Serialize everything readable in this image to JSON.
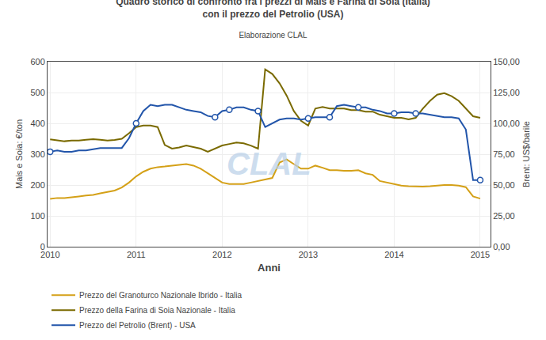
{
  "chart_data": {
    "type": "line",
    "title": "Quadro storico di confronto fra i prezzi di Mais e Farina di Soia (Italia)\ncon il prezzo del Petrolio (USA)",
    "subtitle": "Elaborazione CLAL",
    "xlabel": "Anni",
    "ylabel": "Mais e Soia: €/ton",
    "y2label": "Brent: US$/barile",
    "annotations": [
      {
        "text": "CLAL"
      }
    ],
    "xlim": [
      2009.97,
      2015.12
    ],
    "xticks": [
      2010,
      2011,
      2012,
      2013,
      2014,
      2015
    ],
    "ylim": [
      0,
      600
    ],
    "yticks": [
      0,
      100,
      200,
      300,
      400,
      500,
      600
    ],
    "y2lim": [
      0,
      150
    ],
    "y2ticks": [
      {
        "value": 0,
        "label": "0,00"
      },
      {
        "value": 25,
        "label": "25,00"
      },
      {
        "value": 50,
        "label": "50,00"
      },
      {
        "value": 75,
        "label": "75,00"
      },
      {
        "value": 100,
        "label": "100,00"
      },
      {
        "value": 125,
        "label": "125,00"
      },
      {
        "value": 150,
        "label": "150,00"
      }
    ],
    "grid": true,
    "legend": "bottom",
    "x": [
      2010.0,
      2010.083,
      2010.167,
      2010.25,
      2010.333,
      2010.417,
      2010.5,
      2010.583,
      2010.667,
      2010.75,
      2010.833,
      2010.917,
      2011.0,
      2011.083,
      2011.167,
      2011.25,
      2011.333,
      2011.417,
      2011.5,
      2011.583,
      2011.667,
      2011.75,
      2011.833,
      2011.917,
      2012.0,
      2012.083,
      2012.167,
      2012.25,
      2012.333,
      2012.417,
      2012.5,
      2012.583,
      2012.667,
      2012.75,
      2012.833,
      2012.917,
      2013.0,
      2013.083,
      2013.167,
      2013.25,
      2013.333,
      2013.417,
      2013.5,
      2013.583,
      2013.667,
      2013.75,
      2013.833,
      2013.917,
      2014.0,
      2014.083,
      2014.167,
      2014.25,
      2014.333,
      2014.417,
      2014.5,
      2014.583,
      2014.667,
      2014.75,
      2014.833,
      2014.917,
      2015.0
    ],
    "series": [
      {
        "name": "Prezzo del Granoturco Nazionale Ibrido - Italia",
        "color": "#d4a017",
        "values": [
          155,
          158,
          158,
          160,
          163,
          166,
          168,
          173,
          178,
          182,
          192,
          208,
          228,
          243,
          253,
          258,
          260,
          263,
          266,
          268,
          263,
          253,
          238,
          223,
          208,
          203,
          203,
          203,
          208,
          213,
          218,
          223,
          273,
          283,
          268,
          253,
          253,
          263,
          256,
          248,
          248,
          246,
          246,
          248,
          238,
          233,
          213,
          208,
          203,
          198,
          196,
          195,
          195,
          196,
          198,
          200,
          200,
          198,
          193,
          163,
          156
        ]
      },
      {
        "name": "Prezzo della Farina di Soia Nazionale - Italia",
        "color": "#7a6a00",
        "values": [
          348,
          345,
          342,
          344,
          344,
          347,
          349,
          347,
          344,
          346,
          350,
          368,
          388,
          393,
          393,
          388,
          330,
          318,
          322,
          328,
          322,
          318,
          308,
          318,
          328,
          333,
          338,
          335,
          328,
          318,
          575,
          560,
          530,
          490,
          440,
          408,
          393,
          448,
          453,
          448,
          448,
          448,
          443,
          443,
          438,
          438,
          428,
          423,
          418,
          418,
          413,
          418,
          448,
          473,
          493,
          498,
          488,
          473,
          448,
          423,
          418
        ]
      },
      {
        "name": "Prezzo del Petrolio (Brent) - USA",
        "color": "#2255aa",
        "axis": "y2",
        "values": [
          77,
          78,
          77,
          77,
          78,
          78,
          79,
          80,
          80,
          80,
          80,
          88,
          100,
          110,
          115,
          114,
          115,
          115,
          113,
          111,
          110,
          109,
          106,
          105,
          110,
          111,
          113,
          113,
          111,
          110,
          97,
          100,
          103,
          104,
          104,
          103,
          104,
          105,
          105,
          105,
          114,
          115,
          114,
          113,
          113,
          111,
          110,
          108,
          108,
          109,
          109,
          108,
          108,
          107,
          106,
          105,
          105,
          104,
          95,
          54,
          54
        ]
      },
      {
        "type": "scatter",
        "marker": "circle",
        "color": "#2255aa",
        "axis": "y2",
        "x": [
          2010.0,
          2011.0,
          2011.917,
          2012.083,
          2012.417,
          2013.0,
          2013.25,
          2013.583,
          2014.0,
          2014.25,
          2015.0
        ],
        "values": [
          77,
          100,
          105,
          111,
          110,
          104,
          105,
          113,
          108,
          108,
          54
        ]
      }
    ]
  }
}
